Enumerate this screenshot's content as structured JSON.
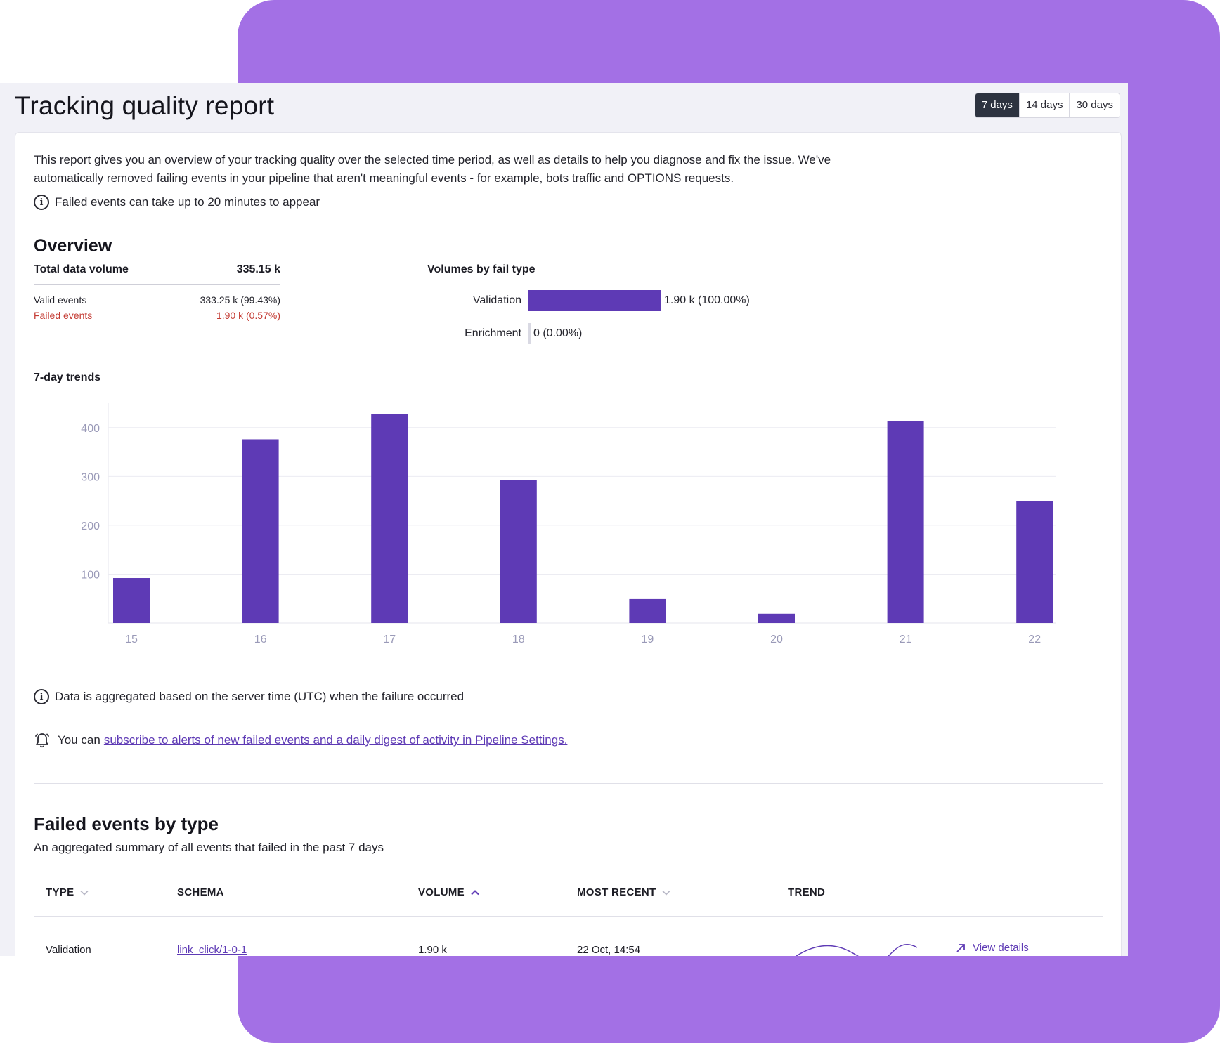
{
  "header": {
    "title": "Tracking quality report",
    "ranges": [
      "7 days",
      "14 days",
      "30 days"
    ],
    "active_range": "7 days"
  },
  "intro": {
    "text": "This report gives you an overview of your tracking quality over the selected time period, as well as details to help you diagnose and fix the issue. We've automatically removed failing events in your pipeline that aren't meaningful events - for example, bots traffic and OPTIONS requests.",
    "delay_note": "Failed events can take up to 20 minutes to appear"
  },
  "overview": {
    "title": "Overview",
    "total_label": "Total data volume",
    "total_value": "335.15 k",
    "valid_label": "Valid events",
    "valid_value": "333.25 k (99.43%)",
    "failed_label": "Failed events",
    "failed_value": "1.90 k (0.57%)"
  },
  "volumes": {
    "title": "Volumes by fail type",
    "rows": [
      {
        "label": "Validation",
        "value": "1.90 k (100.00%)",
        "fraction": 1.0
      },
      {
        "label": "Enrichment",
        "value": "0 (0.00%)",
        "fraction": 0.0
      }
    ]
  },
  "trends": {
    "title": "7-day trends",
    "aggregation_note": "Data is aggregated based on the server time (UTC) when the failure occurred"
  },
  "chart_data": {
    "type": "bar",
    "categories": [
      "15",
      "16",
      "17",
      "18",
      "19",
      "20",
      "21",
      "22"
    ],
    "values": [
      92,
      376,
      427,
      292,
      49,
      19,
      414,
      249
    ],
    "ylim": [
      0,
      450
    ],
    "yticks": [
      100,
      200,
      300,
      400
    ],
    "grid": true,
    "bar_color": "#5e3ab5"
  },
  "alerts": {
    "prefix": "You can",
    "link_text": "subscribe to alerts of new failed events and a daily digest of activity in Pipeline Settings."
  },
  "failed_by_type": {
    "title": "Failed events by type",
    "subtitle": "An aggregated summary of all events that failed in the past 7 days",
    "columns": {
      "type": "TYPE",
      "schema": "SCHEMA",
      "volume": "VOLUME",
      "most_recent": "MOST RECENT",
      "trend": "TREND"
    },
    "rows": [
      {
        "type": "Validation",
        "schema": "link_click/1-0-1",
        "volume": "1.90 k",
        "most_recent": "22 Oct, 14:54",
        "action": "View details"
      }
    ]
  },
  "colors": {
    "accent": "#5e3ab5",
    "backdrop": "#a370e5",
    "error": "#c43b33"
  },
  "icons": {
    "info": "info-icon",
    "bell": "bell-icon",
    "chevron_down": "chevron-down-icon",
    "chevron_up": "chevron-up-icon",
    "arrow": "arrow-up-right-icon"
  }
}
